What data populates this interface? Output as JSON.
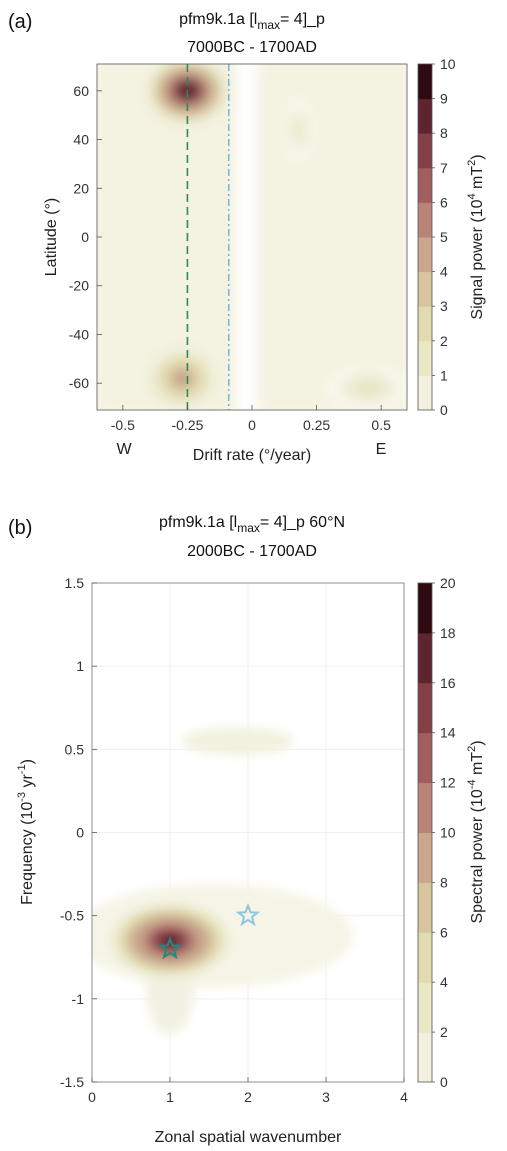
{
  "chart_data": [
    {
      "panel_label": "(a)",
      "type": "heatmap",
      "title": {
        "prefix": "pfm9k.1a [l",
        "sub": "max",
        "suffix": "= 4]_p",
        "line2": "7000BC - 1700AD"
      },
      "xlabel": "Drift rate (°/year)",
      "ylabel": "Latitude (°)",
      "colorbar_label": {
        "main": "Signal power (10",
        "sup1": "4",
        "mid": " mT",
        "sup2": "2",
        "end": ")"
      },
      "xlim": [
        -0.6,
        0.6
      ],
      "ylim": [
        -71,
        71
      ],
      "xticks": [
        -0.5,
        -0.25,
        0,
        0.25,
        0.5
      ],
      "xtick_labels": [
        "-0.5",
        "-0.25",
        "0",
        "0.25",
        "0.5"
      ],
      "yticks": [
        60,
        40,
        20,
        0,
        -20,
        -40,
        -60
      ],
      "ytick_labels": [
        "60",
        "40",
        "20",
        "0",
        "-20",
        "-40",
        "-60"
      ],
      "direction_labels": [
        "W",
        "E"
      ],
      "clim": [
        0,
        10
      ],
      "colorbar_ticks": [
        "0",
        "1",
        "2",
        "3",
        "4",
        "5",
        "6",
        "7",
        "8",
        "9",
        "10"
      ],
      "grid": false,
      "peaks": [
        {
          "x": -0.25,
          "y": 60,
          "value": 10
        },
        {
          "x": -0.27,
          "y": -58,
          "value": 5.5
        },
        {
          "x": 0.18,
          "y": 44,
          "value": 2.2
        },
        {
          "x": 0.45,
          "y": -62,
          "value": 2.8
        }
      ],
      "reference_lines": [
        {
          "x": -0.25,
          "style": "dashed",
          "color": "#2e8b57"
        },
        {
          "x": -0.09,
          "style": "dash-dot",
          "color": "#7fb7d0"
        }
      ]
    },
    {
      "panel_label": "(b)",
      "type": "heatmap",
      "title": {
        "prefix": "pfm9k.1a [l",
        "sub": "max",
        "suffix": "= 4]_p  60°N",
        "line2": "2000BC - 1700AD"
      },
      "xlabel": "Zonal spatial wavenumber",
      "ylabel": {
        "main": "Frequency (10",
        "sup1": "-3",
        "mid": " yr",
        "sup2": "-1",
        "end": ")"
      },
      "colorbar_label": {
        "main": "Spectral power (10",
        "sup1": "-4",
        "mid": " mT",
        "sup2": "2",
        "end": ")"
      },
      "xlim": [
        0,
        4
      ],
      "ylim": [
        -1.5,
        1.5
      ],
      "xticks": [
        0,
        1,
        2,
        3,
        4
      ],
      "xtick_labels": [
        "0",
        "1",
        "2",
        "3",
        "4"
      ],
      "yticks": [
        1.5,
        1,
        0.5,
        0,
        -0.5,
        -1,
        -1.5
      ],
      "ytick_labels": [
        "1.5",
        "1",
        "0.5",
        "0",
        "-0.5",
        "-1",
        "-1.5"
      ],
      "clim": [
        0,
        20
      ],
      "colorbar_ticks": [
        "0",
        "2",
        "4",
        "6",
        "8",
        "10",
        "12",
        "14",
        "16",
        "18",
        "20"
      ],
      "grid": true,
      "peaks": [
        {
          "x": 1.0,
          "y": -0.65,
          "value": 20
        },
        {
          "x": 2.0,
          "y": 0.55,
          "value": 1.5
        }
      ],
      "markers": [
        {
          "x": 1,
          "y": -0.7,
          "shape": "star",
          "color": "#1f8a78"
        },
        {
          "x": 2,
          "y": -0.5,
          "shape": "star",
          "color": "#8ec6df"
        }
      ]
    }
  ],
  "colors": {
    "colormap": [
      "#ffffff",
      "#f2f1df",
      "#e9e7c4",
      "#e2dbb0",
      "#d6c59d",
      "#c9a68c",
      "#b98478",
      "#a25e5e",
      "#843f47",
      "#5e2430",
      "#2f0a10"
    ]
  }
}
